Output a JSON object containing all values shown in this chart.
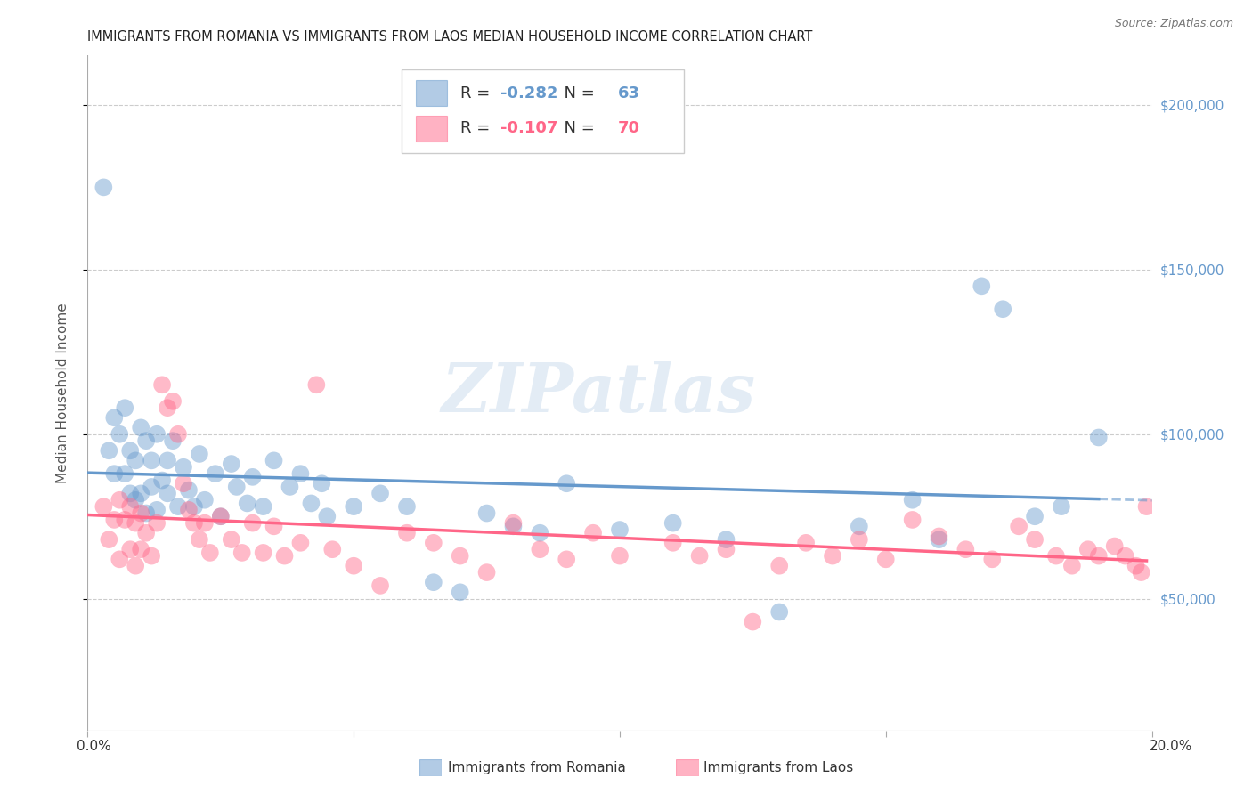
{
  "title": "IMMIGRANTS FROM ROMANIA VS IMMIGRANTS FROM LAOS MEDIAN HOUSEHOLD INCOME CORRELATION CHART",
  "source": "Source: ZipAtlas.com",
  "ylabel": "Median Household Income",
  "x_min": 0.0,
  "x_max": 0.2,
  "y_min": 10000,
  "y_max": 215000,
  "yticks": [
    50000,
    100000,
    150000,
    200000
  ],
  "ytick_labels": [
    "$50,000",
    "$100,000",
    "$150,000",
    "$200,000"
  ],
  "xticks": [
    0.0,
    0.05,
    0.1,
    0.15,
    0.2
  ],
  "xtick_labels": [
    "0.0%",
    "",
    "",
    "",
    "20.0%"
  ],
  "romania_color": "#6699CC",
  "laos_color": "#FF6688",
  "romania_label": "Immigrants from Romania",
  "laos_label": "Immigrants from Laos",
  "romania_R": "-0.282",
  "romania_N": "63",
  "laos_R": "-0.107",
  "laos_N": "70",
  "background_color": "#FFFFFF",
  "grid_color": "#CCCCCC",
  "right_axis_color": "#6699CC",
  "watermark_text": "ZIPatlas",
  "romania_scatter_x": [
    0.003,
    0.004,
    0.005,
    0.005,
    0.006,
    0.007,
    0.007,
    0.008,
    0.008,
    0.009,
    0.009,
    0.01,
    0.01,
    0.011,
    0.011,
    0.012,
    0.012,
    0.013,
    0.013,
    0.014,
    0.015,
    0.015,
    0.016,
    0.017,
    0.018,
    0.019,
    0.02,
    0.021,
    0.022,
    0.024,
    0.025,
    0.027,
    0.028,
    0.03,
    0.031,
    0.033,
    0.035,
    0.038,
    0.04,
    0.042,
    0.044,
    0.045,
    0.05,
    0.055,
    0.06,
    0.065,
    0.07,
    0.075,
    0.08,
    0.085,
    0.09,
    0.1,
    0.11,
    0.12,
    0.13,
    0.145,
    0.155,
    0.16,
    0.168,
    0.172,
    0.178,
    0.183,
    0.19
  ],
  "romania_scatter_y": [
    175000,
    95000,
    105000,
    88000,
    100000,
    108000,
    88000,
    95000,
    82000,
    92000,
    80000,
    102000,
    82000,
    98000,
    76000,
    92000,
    84000,
    100000,
    77000,
    86000,
    92000,
    82000,
    98000,
    78000,
    90000,
    83000,
    78000,
    94000,
    80000,
    88000,
    75000,
    91000,
    84000,
    79000,
    87000,
    78000,
    92000,
    84000,
    88000,
    79000,
    85000,
    75000,
    78000,
    82000,
    78000,
    55000,
    52000,
    76000,
    72000,
    70000,
    85000,
    71000,
    73000,
    68000,
    46000,
    72000,
    80000,
    68000,
    145000,
    138000,
    75000,
    78000,
    99000
  ],
  "laos_scatter_x": [
    0.003,
    0.004,
    0.005,
    0.006,
    0.006,
    0.007,
    0.008,
    0.008,
    0.009,
    0.009,
    0.01,
    0.01,
    0.011,
    0.012,
    0.013,
    0.014,
    0.015,
    0.016,
    0.017,
    0.018,
    0.019,
    0.02,
    0.021,
    0.022,
    0.023,
    0.025,
    0.027,
    0.029,
    0.031,
    0.033,
    0.035,
    0.037,
    0.04,
    0.043,
    0.046,
    0.05,
    0.055,
    0.06,
    0.065,
    0.07,
    0.075,
    0.08,
    0.085,
    0.09,
    0.095,
    0.1,
    0.11,
    0.115,
    0.12,
    0.125,
    0.13,
    0.135,
    0.14,
    0.145,
    0.15,
    0.155,
    0.16,
    0.165,
    0.17,
    0.175,
    0.178,
    0.182,
    0.185,
    0.188,
    0.19,
    0.193,
    0.195,
    0.197,
    0.198,
    0.199
  ],
  "laos_scatter_y": [
    78000,
    68000,
    74000,
    80000,
    62000,
    74000,
    78000,
    65000,
    73000,
    60000,
    76000,
    65000,
    70000,
    63000,
    73000,
    115000,
    108000,
    110000,
    100000,
    85000,
    77000,
    73000,
    68000,
    73000,
    64000,
    75000,
    68000,
    64000,
    73000,
    64000,
    72000,
    63000,
    67000,
    115000,
    65000,
    60000,
    54000,
    70000,
    67000,
    63000,
    58000,
    73000,
    65000,
    62000,
    70000,
    63000,
    67000,
    63000,
    65000,
    43000,
    60000,
    67000,
    63000,
    68000,
    62000,
    74000,
    69000,
    65000,
    62000,
    72000,
    68000,
    63000,
    60000,
    65000,
    63000,
    66000,
    63000,
    60000,
    58000,
    78000
  ]
}
